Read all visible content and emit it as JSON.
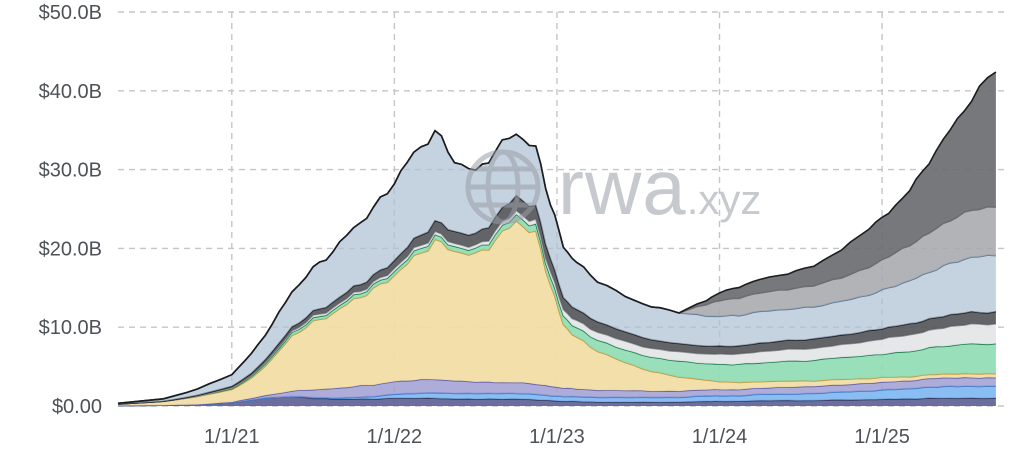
{
  "watermark": {
    "brand": "rwa",
    "suffix": ".xyz"
  },
  "chart_data": {
    "type": "area",
    "stacked": true,
    "title": "",
    "xlabel": "",
    "ylabel": "",
    "units": "USD billions",
    "legend_position": "none",
    "grid": {
      "dashed": true,
      "color": "#c3c5c9"
    },
    "axis_label_color": "#4e5257",
    "ylim": [
      0,
      50
    ],
    "xlim": [
      2020.3,
      2025.75
    ],
    "y_ticks": [
      {
        "value": 0,
        "label": "$0.00"
      },
      {
        "value": 10,
        "label": "$10.0B"
      },
      {
        "value": 20,
        "label": "$20.0B"
      },
      {
        "value": 30,
        "label": "$30.0B"
      },
      {
        "value": 40,
        "label": "$40.0B"
      },
      {
        "value": 50,
        "label": "$50.0B"
      }
    ],
    "x_ticks": [
      {
        "value": 2021,
        "label": "1/1/21"
      },
      {
        "value": 2022,
        "label": "1/1/22"
      },
      {
        "value": 2023,
        "label": "1/1/23"
      },
      {
        "value": 2024,
        "label": "1/1/24"
      },
      {
        "value": 2025,
        "label": "1/1/25"
      }
    ],
    "x": [
      2020.3,
      2020.58,
      2020.79,
      2021.0,
      2021.12,
      2021.25,
      2021.37,
      2021.5,
      2021.62,
      2021.75,
      2021.87,
      2022.0,
      2022.12,
      2022.25,
      2022.37,
      2022.5,
      2022.62,
      2022.75,
      2022.87,
      2022.96,
      2023.04,
      2023.12,
      2023.25,
      2023.42,
      2023.58,
      2023.75,
      2023.92,
      2024.0,
      2024.12,
      2024.25,
      2024.42,
      2024.58,
      2024.75,
      2024.92,
      2025.04,
      2025.17,
      2025.29,
      2025.42,
      2025.55,
      2025.7
    ],
    "series": [
      {
        "name": "navy-band",
        "color": "#5c5f93",
        "stroke": "#33365e",
        "opacity": 0.9,
        "values": [
          0.05,
          0.1,
          0.2,
          0.4,
          0.8,
          1.1,
          1.2,
          1.0,
          0.9,
          0.9,
          0.9,
          1.0,
          1.0,
          1.0,
          0.9,
          0.9,
          0.9,
          0.9,
          0.8,
          0.7,
          0.6,
          0.6,
          0.5,
          0.5,
          0.5,
          0.5,
          0.6,
          0.6,
          0.6,
          0.7,
          0.7,
          0.7,
          0.8,
          0.8,
          0.9,
          0.9,
          1.0,
          1.0,
          1.0,
          1.0
        ]
      },
      {
        "name": "light-blue-band",
        "color": "#7db6f0",
        "stroke": "#3c7cd0",
        "opacity": 0.9,
        "values": [
          0,
          0,
          0,
          0,
          0,
          0,
          0,
          0.1,
          0.1,
          0.2,
          0.3,
          0.5,
          0.6,
          0.7,
          0.7,
          0.7,
          0.7,
          0.7,
          0.7,
          0.6,
          0.6,
          0.6,
          0.6,
          0.6,
          0.6,
          0.6,
          0.7,
          0.7,
          0.7,
          0.8,
          0.8,
          0.9,
          1.0,
          1.1,
          1.2,
          1.3,
          1.4,
          1.5,
          1.5,
          1.5
        ]
      },
      {
        "name": "purple-band",
        "color": "#a09ed2",
        "stroke": "#605da9",
        "opacity": 0.85,
        "values": [
          0,
          0,
          0,
          0.1,
          0.2,
          0.4,
          0.7,
          1.0,
          1.2,
          1.4,
          1.5,
          1.6,
          1.7,
          1.7,
          1.6,
          1.5,
          1.4,
          1.4,
          1.3,
          1.2,
          1.1,
          1.0,
          0.9,
          0.9,
          0.8,
          0.8,
          0.8,
          0.8,
          0.8,
          0.8,
          0.9,
          0.9,
          0.9,
          1.0,
          1.0,
          1.0,
          1.1,
          1.1,
          1.1,
          1.1
        ]
      },
      {
        "name": "gold-band",
        "color": "#f2dda4",
        "stroke": "#c19a3e",
        "opacity": 0.95,
        "values": [
          0.2,
          0.5,
          1.0,
          1.6,
          2.5,
          4.5,
          7.0,
          8.5,
          9.5,
          11.0,
          12.0,
          13.5,
          15.5,
          17.5,
          16.5,
          16.0,
          18.0,
          20.5,
          19.0,
          13.0,
          8.0,
          6.5,
          5.0,
          3.5,
          2.5,
          1.8,
          1.2,
          1.0,
          0.9,
          0.8,
          0.8,
          0.7,
          0.7,
          0.6,
          0.6,
          0.5,
          0.5,
          0.5,
          0.5,
          0.5
        ]
      },
      {
        "name": "green-band",
        "color": "#8edcb2",
        "stroke": "#1e7a4c",
        "opacity": 0.9,
        "values": [
          0,
          0,
          0.05,
          0.1,
          0.2,
          0.3,
          0.4,
          0.4,
          0.4,
          0.5,
          0.5,
          0.5,
          0.6,
          0.6,
          0.6,
          0.6,
          0.7,
          0.8,
          0.9,
          1.0,
          1.1,
          1.2,
          1.4,
          1.6,
          1.8,
          2.0,
          2.1,
          2.2,
          2.3,
          2.4,
          2.5,
          2.6,
          2.8,
          2.9,
          3.0,
          3.2,
          3.4,
          3.6,
          3.8,
          3.8
        ]
      },
      {
        "name": "light-gray-band",
        "color": "#e4e5e7",
        "stroke": "#909398",
        "opacity": 0.92,
        "values": [
          0,
          0,
          0,
          0.1,
          0.1,
          0.2,
          0.2,
          0.3,
          0.3,
          0.3,
          0.3,
          0.4,
          0.4,
          0.4,
          0.4,
          0.4,
          0.5,
          0.5,
          0.6,
          0.7,
          0.8,
          0.9,
          1.0,
          1.1,
          1.1,
          1.2,
          1.2,
          1.3,
          1.3,
          1.4,
          1.5,
          1.5,
          1.6,
          1.8,
          2.0,
          2.1,
          2.2,
          2.4,
          2.5,
          2.5
        ]
      },
      {
        "name": "charcoal-band",
        "color": "#55575b",
        "stroke": "#1f2023",
        "opacity": 0.92,
        "values": [
          0,
          0,
          0.1,
          0.2,
          0.3,
          0.4,
          0.5,
          0.6,
          0.7,
          0.8,
          0.9,
          1.0,
          1.2,
          1.4,
          1.5,
          1.5,
          1.7,
          1.9,
          1.8,
          1.6,
          1.5,
          1.4,
          1.3,
          1.2,
          1.1,
          1.0,
          1.0,
          1.0,
          1.0,
          1.1,
          1.1,
          1.2,
          1.2,
          1.3,
          1.3,
          1.4,
          1.4,
          1.5,
          1.5,
          1.5
        ]
      },
      {
        "name": "steel-blue-band",
        "color": "#afc0d4",
        "stroke": "#5b7a9b",
        "opacity": 0.72,
        "values": [
          0.1,
          0.3,
          0.8,
          1.5,
          2.5,
          3.5,
          4.5,
          5.5,
          6.5,
          7.5,
          8.5,
          10.0,
          11.0,
          11.5,
          9.0,
          8.0,
          8.5,
          8.0,
          7.5,
          7.0,
          6.5,
          6.0,
          5.2,
          4.5,
          4.2,
          4.0,
          3.8,
          3.8,
          3.9,
          4.0,
          4.0,
          4.1,
          4.3,
          4.6,
          5.0,
          5.5,
          6.0,
          6.5,
          7.0,
          7.2
        ]
      },
      {
        "name": "gray-band",
        "color": "#a6a8ac",
        "stroke": "#6c6e72",
        "opacity": 0.88,
        "values": [
          0,
          0,
          0,
          0,
          0,
          0,
          0,
          0,
          0,
          0,
          0,
          0,
          0,
          0,
          0,
          0,
          0,
          0,
          0,
          0,
          0,
          0,
          0,
          0,
          0,
          0,
          1.5,
          2.0,
          2.2,
          2.4,
          2.5,
          2.7,
          3.0,
          3.5,
          4.0,
          4.5,
          5.0,
          5.5,
          6.0,
          6.2
        ]
      },
      {
        "name": "dark-charcoal-band",
        "color": "#6a6c70",
        "stroke": "#1b1c1e",
        "opacity": 0.92,
        "values": [
          0,
          0,
          0,
          0,
          0,
          0,
          0,
          0,
          0,
          0,
          0,
          0,
          0,
          0,
          0,
          0,
          0,
          0,
          0,
          0,
          0,
          0,
          0,
          0,
          0,
          0,
          0.5,
          1.0,
          1.4,
          1.7,
          2.0,
          2.5,
          3.5,
          5.0,
          5.5,
          7.0,
          9.0,
          11.5,
          14.0,
          17.5
        ]
      }
    ]
  }
}
